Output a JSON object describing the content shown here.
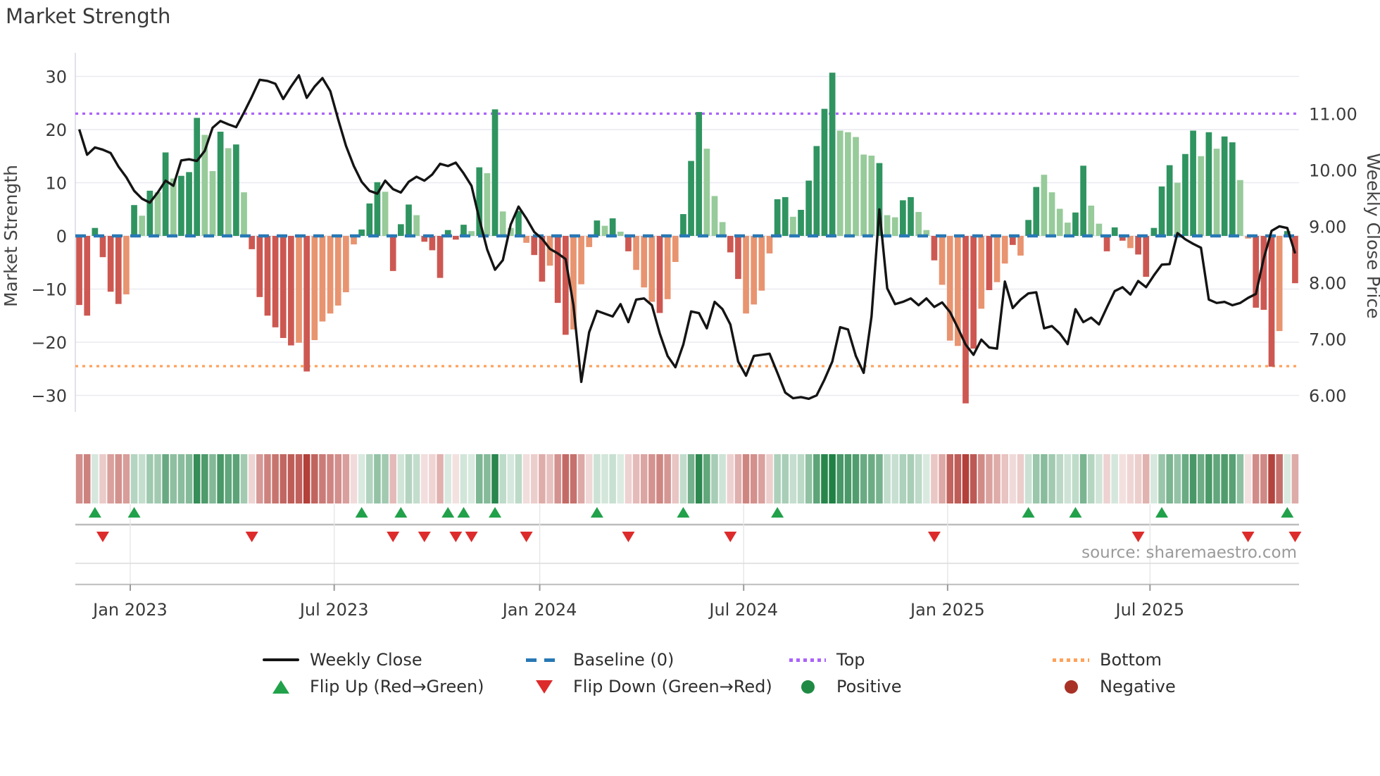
{
  "title": "Market Strength",
  "source": "source: sharemaestro.com",
  "axes": {
    "left_label": "Market Strength",
    "right_label": "Weekly Close Price",
    "left_ticks": [
      "30",
      "20",
      "10",
      "0",
      "−10",
      "−20",
      "−30"
    ],
    "left_tick_values": [
      30,
      20,
      10,
      0,
      -10,
      -20,
      -30
    ],
    "right_ticks": [
      "11.00",
      "10.00",
      "9.00",
      "8.00",
      "7.00",
      "6.00"
    ],
    "right_tick_values": [
      11,
      10,
      9,
      8,
      7,
      6
    ],
    "x_ticks": [
      "Jan 2023",
      "Jul 2023",
      "Jan 2024",
      "Jul 2024",
      "Jan 2025",
      "Jul 2025"
    ],
    "x_tick_weeks": [
      7,
      33,
      59.2,
      85.2,
      111.2,
      137
    ]
  },
  "legend": {
    "items": [
      {
        "key": "weekly-close",
        "label": "Weekly Close"
      },
      {
        "key": "baseline",
        "label": "Baseline (0)"
      },
      {
        "key": "top",
        "label": "Top"
      },
      {
        "key": "bottom",
        "label": "Bottom"
      },
      {
        "key": "flip-up",
        "label": "Flip Up (Red→Green)"
      },
      {
        "key": "flip-down",
        "label": "Flip Down (Green→Red)"
      },
      {
        "key": "positive",
        "label": "Positive"
      },
      {
        "key": "negative",
        "label": "Negative"
      }
    ]
  },
  "colors": {
    "bar_dark_green": "#2f9460",
    "bar_light_green": "#97cb9a",
    "bar_dark_red": "#cd5852",
    "bar_salmon": "#e89470",
    "line": "#141414",
    "baseline": "#2878b5",
    "top_line": "#ab63fa",
    "bottom_line": "#ffa15a",
    "flip_up": "#21a14a",
    "flip_down": "#dd2b2b",
    "grid": "#e9e9f1",
    "heat_green": "#1b7e41",
    "heat_red": "#b13c36"
  },
  "chart_data": {
    "type": "bar",
    "title": "Market Strength",
    "xlabel": "",
    "ylabel_left": "Market Strength",
    "ylabel_right": "Weekly Close Price",
    "ylim_left": [
      -33,
      33
    ],
    "ylim_right": [
      5.7,
      11.7
    ],
    "baseline_value": 0,
    "top_line_value": 23,
    "bottom_line_value": -24.5,
    "n_weeks": 156,
    "strength_bars": [
      -13,
      -15,
      1.5,
      -4,
      -10.5,
      -12.8,
      -11,
      5.8,
      3.8,
      8.5,
      8.2,
      15.7,
      10.8,
      11.3,
      12.0,
      22.2,
      19.0,
      12.2,
      19.6,
      16.5,
      17.2,
      8.2,
      -2.5,
      -11.5,
      -15.0,
      -17.2,
      -19.2,
      -20.6,
      -20.1,
      -25.5,
      -19.6,
      -16.1,
      -14.6,
      -13.1,
      -10.6,
      -1.6,
      1.2,
      6.1,
      10.1,
      8.3,
      -6.6,
      2.2,
      5.9,
      3.9,
      -1.1,
      -2.7,
      -7.9,
      1.1,
      -0.7,
      2.1,
      0.9,
      12.9,
      11.8,
      23.8,
      4.6,
      1.5,
      4.7,
      -1.3,
      -3.6,
      -8.6,
      -5.6,
      -12.6,
      -18.6,
      -17.6,
      -9.1,
      -2.1,
      2.9,
      1.9,
      3.3,
      0.8,
      -2.9,
      -6.4,
      -9.7,
      -12.4,
      -14.5,
      -11.9,
      -4.9,
      4.1,
      14.1,
      23.3,
      16.4,
      7.5,
      2.6,
      -3.1,
      -8.1,
      -14.6,
      -12.9,
      -10.3,
      -3.3,
      6.9,
      7.3,
      3.6,
      4.9,
      10.4,
      16.9,
      23.9,
      30.7,
      19.8,
      19.5,
      18.6,
      15.3,
      15.1,
      13.7,
      3.9,
      3.5,
      6.7,
      7.3,
      4.5,
      1.1,
      -4.6,
      -9.2,
      -19.7,
      -20.7,
      -31.5,
      -21.2,
      -13.7,
      -10.2,
      -8.7,
      -5.2,
      -1.7,
      -3.7,
      3.0,
      9.2,
      11.5,
      8.2,
      5.1,
      2.5,
      4.4,
      13.2,
      5.7,
      2.3,
      -2.9,
      1.6,
      -0.9,
      -2.3,
      -3.5,
      -7.7,
      1.5,
      9.3,
      13.3,
      10.0,
      15.4,
      19.8,
      15.0,
      19.5,
      16.4,
      18.7,
      17.6,
      10.5,
      -0.5,
      -13.5,
      -13.9,
      -24.6,
      -17.9,
      0.9,
      -8.9
    ],
    "bar_shades": [
      "dr",
      "dr",
      "dg",
      "dr",
      "dr",
      "dr",
      "sr",
      "dg",
      "lg",
      "dg",
      "lg",
      "dg",
      "lg",
      "dg",
      "dg",
      "dg",
      "lg",
      "lg",
      "dg",
      "lg",
      "dg",
      "lg",
      "dr",
      "dr",
      "dr",
      "dr",
      "dr",
      "dr",
      "sr",
      "dr",
      "sr",
      "sr",
      "sr",
      "sr",
      "sr",
      "sr",
      "dg",
      "dg",
      "dg",
      "lg",
      "dr",
      "dg",
      "dg",
      "lg",
      "dr",
      "dr",
      "dr",
      "dg",
      "dr",
      "dg",
      "lg",
      "dg",
      "lg",
      "dg",
      "lg",
      "lg",
      "dg",
      "sr",
      "dr",
      "dr",
      "sr",
      "dr",
      "dr",
      "sr",
      "sr",
      "sr",
      "dg",
      "lg",
      "dg",
      "lg",
      "dr",
      "sr",
      "sr",
      "sr",
      "dr",
      "sr",
      "sr",
      "dg",
      "dg",
      "dg",
      "lg",
      "lg",
      "lg",
      "dr",
      "dr",
      "sr",
      "sr",
      "sr",
      "sr",
      "dg",
      "dg",
      "lg",
      "dg",
      "dg",
      "dg",
      "dg",
      "dg",
      "lg",
      "lg",
      "lg",
      "lg",
      "lg",
      "dg",
      "lg",
      "lg",
      "dg",
      "dg",
      "lg",
      "lg",
      "dr",
      "sr",
      "sr",
      "sr",
      "dr",
      "dr",
      "sr",
      "dr",
      "sr",
      "sr",
      "dr",
      "sr",
      "dg",
      "dg",
      "lg",
      "lg",
      "lg",
      "lg",
      "dg",
      "dg",
      "lg",
      "lg",
      "dr",
      "dg",
      "dr",
      "sr",
      "dr",
      "dr",
      "dg",
      "dg",
      "dg",
      "lg",
      "dg",
      "dg",
      "lg",
      "dg",
      "lg",
      "dg",
      "dg",
      "lg",
      "sr",
      "dr",
      "dr",
      "dr",
      "sr",
      "dg",
      "dr"
    ],
    "weekly_close": [
      10.72,
      10.27,
      10.4,
      10.36,
      10.3,
      10.06,
      9.87,
      9.63,
      9.49,
      9.42,
      9.6,
      9.81,
      9.72,
      10.17,
      10.19,
      10.16,
      10.34,
      10.75,
      10.87,
      10.81,
      10.76,
      11.02,
      11.3,
      11.6,
      11.58,
      11.53,
      11.26,
      11.48,
      11.68,
      11.28,
      11.48,
      11.63,
      11.4,
      10.9,
      10.43,
      10.07,
      9.79,
      9.63,
      9.58,
      9.81,
      9.66,
      9.6,
      9.79,
      9.88,
      9.81,
      9.92,
      10.11,
      10.07,
      10.13,
      9.94,
      9.72,
      9.13,
      8.59,
      8.23,
      8.4,
      9.03,
      9.35,
      9.14,
      8.9,
      8.78,
      8.6,
      8.52,
      8.42,
      7.6,
      6.24,
      7.12,
      7.5,
      7.45,
      7.4,
      7.62,
      7.3,
      7.7,
      7.72,
      7.6,
      7.1,
      6.7,
      6.5,
      6.9,
      7.49,
      7.46,
      7.19,
      7.66,
      7.53,
      7.26,
      6.6,
      6.35,
      6.7,
      6.72,
      6.74,
      6.4,
      6.05,
      5.95,
      5.97,
      5.94,
      6.0,
      6.28,
      6.6,
      7.21,
      7.17,
      6.7,
      6.4,
      7.4,
      9.3,
      7.9,
      7.62,
      7.66,
      7.72,
      7.6,
      7.72,
      7.57,
      7.65,
      7.48,
      7.2,
      6.9,
      6.72,
      6.99,
      6.85,
      6.83,
      8.02,
      7.55,
      7.7,
      7.81,
      7.83,
      7.19,
      7.23,
      7.1,
      6.91,
      7.53,
      7.3,
      7.38,
      7.26,
      7.56,
      7.85,
      7.92,
      7.79,
      8.03,
      7.92,
      8.13,
      8.32,
      8.33,
      8.88,
      8.77,
      8.69,
      8.62,
      7.7,
      7.64,
      7.66,
      7.6,
      7.64,
      7.73,
      7.8,
      8.43,
      8.92,
      9.0,
      8.97,
      8.52
    ],
    "flip_up_weeks": [
      2,
      7,
      36,
      41,
      47,
      49,
      53,
      66,
      77,
      89,
      121,
      127,
      138,
      154
    ],
    "flip_down_weeks": [
      3,
      22,
      40,
      44,
      48,
      50,
      57,
      70,
      83,
      109,
      135,
      149,
      155
    ],
    "legend_position": "bottom",
    "grid": true
  }
}
